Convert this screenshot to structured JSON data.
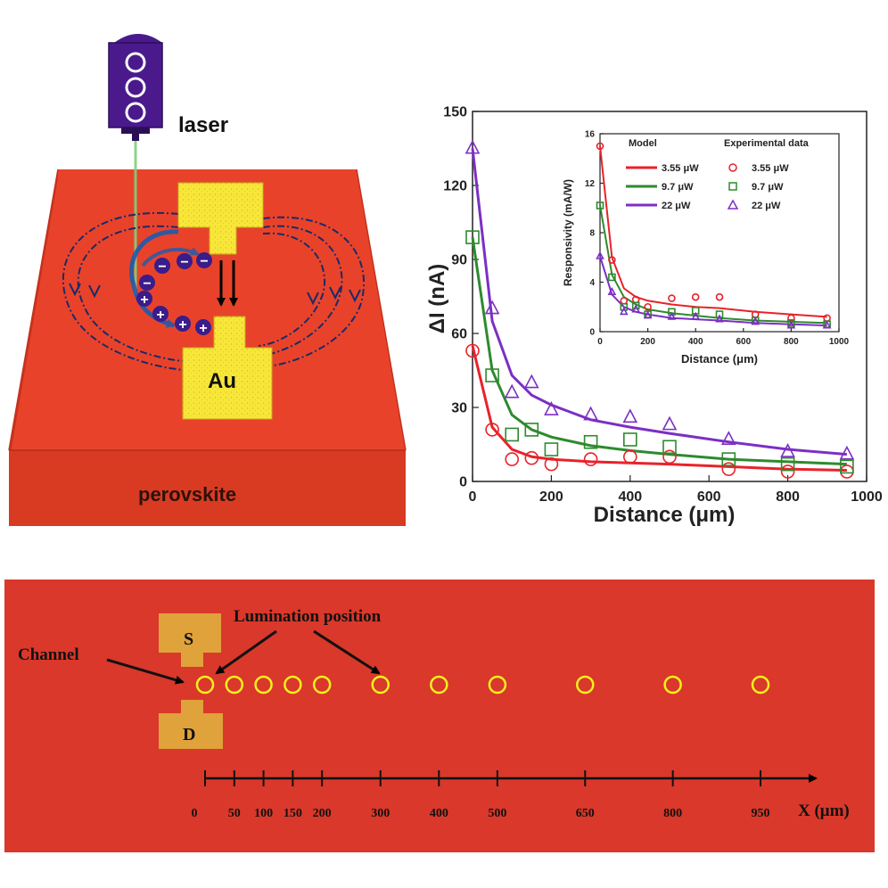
{
  "device": {
    "laser_label": "laser",
    "electrode_label": "Au",
    "substrate_label": "perovskite",
    "charges": {
      "negative": "−",
      "positive": "+"
    },
    "colors": {
      "substrate": "#e03a1f",
      "electrode": "#f5e531",
      "laser": "#4a1a8c"
    }
  },
  "chart_data": {
    "type": "scatter",
    "xlabel": "Distance (μm)",
    "ylabel": "ΔI (nA)",
    "xlim": [
      0,
      1000
    ],
    "ylim": [
      0,
      150
    ],
    "xticks": [
      "0",
      "200",
      "400",
      "600",
      "800",
      "1000"
    ],
    "yticks": [
      "0",
      "30",
      "60",
      "90",
      "120",
      "150"
    ],
    "series": [
      {
        "color": "#e8222a",
        "marker": "circle",
        "x": [
          0,
          50,
          100,
          150,
          200,
          300,
          400,
          500,
          650,
          800,
          950
        ],
        "y": [
          53,
          21,
          9,
          9.5,
          7,
          9,
          10,
          10,
          5,
          4,
          4
        ],
        "model": [
          55,
          22,
          13,
          10,
          9,
          8,
          7.5,
          7,
          6,
          5,
          4.5
        ]
      },
      {
        "color": "#2e8a2e",
        "marker": "square",
        "x": [
          0,
          50,
          100,
          150,
          200,
          300,
          400,
          500,
          650,
          800,
          950
        ],
        "y": [
          99,
          43,
          19,
          21,
          13,
          16,
          17,
          14,
          9,
          7,
          6
        ],
        "model": [
          99,
          45,
          27,
          21,
          18,
          14.5,
          12.5,
          11,
          9,
          8,
          7
        ]
      },
      {
        "color": "#7b2fc4",
        "marker": "triangle",
        "x": [
          0,
          50,
          100,
          150,
          200,
          300,
          400,
          500,
          650,
          800,
          950
        ],
        "y": [
          135,
          70,
          36,
          40,
          29,
          27,
          26,
          23,
          17,
          12,
          11
        ],
        "model": [
          135,
          65,
          43,
          35,
          31,
          25,
          22,
          19.5,
          16,
          13,
          11
        ]
      }
    ],
    "inset": {
      "type": "scatter",
      "xlabel": "Distance (μm)",
      "ylabel": "Responsivity (mA/W)",
      "xlim": [
        0,
        1000
      ],
      "ylim": [
        0,
        16
      ],
      "xticks": [
        "0",
        "200",
        "400",
        "600",
        "800",
        "1000"
      ],
      "yticks": [
        "0",
        "4",
        "8",
        "12",
        "16"
      ],
      "legend": {
        "model_title": "Model",
        "data_title": "Experimental data",
        "model_entries": [
          "3.55 μW",
          "9.7 μW",
          "22 μW"
        ],
        "data_entries": [
          "3.55 μW",
          "9.7 μW",
          "22 μW"
        ]
      },
      "series": [
        {
          "color": "#e8222a",
          "marker": "circle",
          "x": [
            0,
            50,
            100,
            150,
            200,
            300,
            400,
            500,
            650,
            800,
            950
          ],
          "y": [
            15,
            5.8,
            2.5,
            2.6,
            2,
            2.7,
            2.8,
            2.8,
            1.4,
            1.1,
            1.1
          ],
          "model": [
            15,
            6,
            3.5,
            2.8,
            2.5,
            2.2,
            2,
            1.9,
            1.6,
            1.4,
            1.2
          ]
        },
        {
          "color": "#2e8a2e",
          "marker": "square",
          "x": [
            0,
            50,
            100,
            150,
            200,
            300,
            400,
            500,
            650,
            800,
            950
          ],
          "y": [
            10.2,
            4.4,
            2,
            2.1,
            1.4,
            1.6,
            1.7,
            1.4,
            0.9,
            0.7,
            0.6
          ],
          "model": [
            10.2,
            4.6,
            2.8,
            2.2,
            1.8,
            1.5,
            1.3,
            1.1,
            0.9,
            0.8,
            0.7
          ]
        },
        {
          "color": "#7b2fc4",
          "marker": "triangle",
          "x": [
            0,
            50,
            100,
            150,
            200,
            300,
            400,
            500,
            650,
            800,
            950
          ],
          "y": [
            6.1,
            3.2,
            1.6,
            1.8,
            1.3,
            1.2,
            1.2,
            1,
            0.8,
            0.5,
            0.5
          ],
          "model": [
            6.1,
            3,
            2,
            1.6,
            1.4,
            1.1,
            1,
            0.9,
            0.7,
            0.6,
            0.5
          ]
        }
      ]
    }
  },
  "schematic": {
    "source_label": "S",
    "drain_label": "D",
    "channel_label": "Channel",
    "lumination_label": "Lumination position",
    "axis_title": "X (μm)",
    "positions": [
      0,
      50,
      100,
      150,
      200,
      300,
      400,
      500,
      650,
      800,
      950
    ],
    "position_labels": [
      "0",
      "50",
      "100",
      "150",
      "200",
      "300",
      "400",
      "500",
      "650",
      "800",
      "950"
    ],
    "colors": {
      "background": "#d9382a",
      "electrode": "#e0a23a",
      "circle": "#f4ef1e"
    }
  }
}
